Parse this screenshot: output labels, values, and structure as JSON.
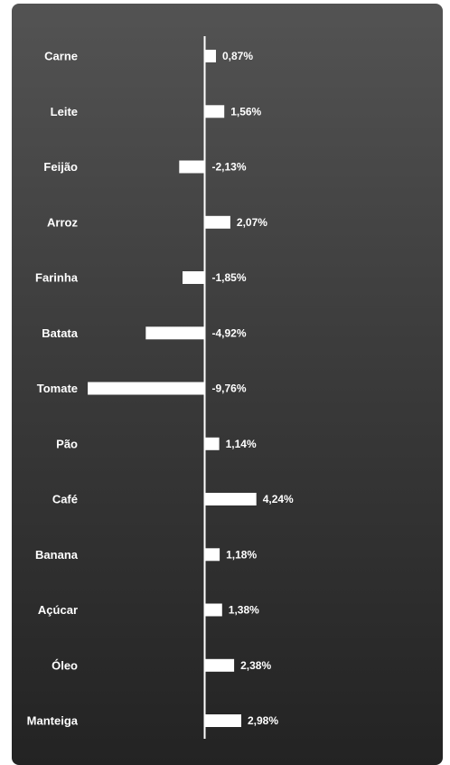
{
  "chart_data": {
    "type": "bar",
    "orientation": "horizontal",
    "categories": [
      "Carne",
      "Leite",
      "Feijão",
      "Arroz",
      "Farinha",
      "Batata",
      "Tomate",
      "Pão",
      "Café",
      "Banana",
      "Açúcar",
      "Óleo",
      "Manteiga"
    ],
    "values": [
      0.87,
      1.56,
      -2.13,
      2.07,
      -1.85,
      -4.92,
      -9.76,
      1.14,
      4.24,
      1.18,
      1.38,
      2.38,
      2.98
    ],
    "value_labels": [
      "0,87%",
      "1,56%",
      "-2,13%",
      "2,07%",
      "-1,85%",
      "-4,92%",
      "-9,76%",
      "1,14%",
      "4,24%",
      "1,18%",
      "1,38%",
      "2,38%",
      "2,98%"
    ],
    "title": "",
    "xlabel": "",
    "ylabel": "",
    "unit": "%",
    "grid": false,
    "colors": {
      "bar": "#ffffff",
      "axis": "#ffffff",
      "text": "#ffffff",
      "background_top": "#535353",
      "background_bottom": "#232323"
    }
  }
}
